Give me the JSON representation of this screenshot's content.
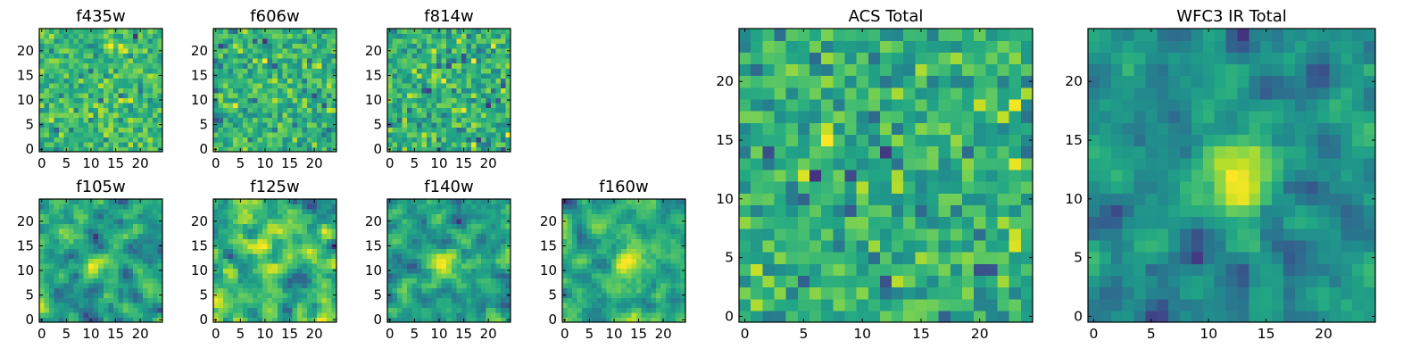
{
  "figure": {
    "description_colormap": "viridis",
    "colors": {
      "frame": "#000000",
      "background": "#ffffff"
    }
  },
  "chart_data": [
    {
      "id": "f435w",
      "type": "heatmap",
      "title": "f435w",
      "colormap": "viridis",
      "grid_size": 25,
      "xlim": [
        -0.5,
        24.5
      ],
      "ylim": [
        -0.5,
        24.5
      ],
      "xticks": [
        0,
        5,
        10,
        15,
        20
      ],
      "yticks": [
        0,
        5,
        10,
        15,
        20
      ],
      "texture": "noise",
      "seed": 11
    },
    {
      "id": "f606w",
      "type": "heatmap",
      "title": "f606w",
      "colormap": "viridis",
      "grid_size": 25,
      "xlim": [
        -0.5,
        24.5
      ],
      "ylim": [
        -0.5,
        24.5
      ],
      "xticks": [
        0,
        5,
        10,
        15,
        20
      ],
      "yticks": [
        0,
        5,
        10,
        15,
        20
      ],
      "texture": "noise",
      "seed": 23
    },
    {
      "id": "f814w",
      "type": "heatmap",
      "title": "f814w",
      "colormap": "viridis",
      "grid_size": 25,
      "xlim": [
        -0.5,
        24.5
      ],
      "ylim": [
        -0.5,
        24.5
      ],
      "xticks": [
        0,
        5,
        10,
        15,
        20
      ],
      "yticks": [
        0,
        5,
        10,
        15,
        20
      ],
      "texture": "noise",
      "seed": 37
    },
    {
      "id": "f105w",
      "type": "heatmap",
      "title": "f105w",
      "colormap": "viridis",
      "grid_size": 25,
      "xlim": [
        -0.5,
        24.5
      ],
      "ylim": [
        -0.5,
        24.5
      ],
      "xticks": [
        0,
        5,
        10,
        15,
        20
      ],
      "yticks": [
        0,
        5,
        10,
        15,
        20
      ],
      "texture": "smooth",
      "source_center": [
        11,
        11
      ],
      "source_strength": 0.15,
      "seed": 41
    },
    {
      "id": "f125w",
      "type": "heatmap",
      "title": "f125w",
      "colormap": "viridis",
      "grid_size": 25,
      "xlim": [
        -0.5,
        24.5
      ],
      "ylim": [
        -0.5,
        24.5
      ],
      "xticks": [
        0,
        5,
        10,
        15,
        20
      ],
      "yticks": [
        0,
        5,
        10,
        15,
        20
      ],
      "texture": "smooth",
      "source_center": [
        12,
        10
      ],
      "source_strength": 0.12,
      "seed": 53
    },
    {
      "id": "f140w",
      "type": "heatmap",
      "title": "f140w",
      "colormap": "viridis",
      "grid_size": 25,
      "xlim": [
        -0.5,
        24.5
      ],
      "ylim": [
        -0.5,
        24.5
      ],
      "xticks": [
        0,
        5,
        10,
        15,
        20
      ],
      "yticks": [
        0,
        5,
        10,
        15,
        20
      ],
      "texture": "smooth",
      "source_center": [
        11,
        11
      ],
      "source_strength": 0.3,
      "seed": 67
    },
    {
      "id": "f160w",
      "type": "heatmap",
      "title": "f160w",
      "colormap": "viridis",
      "grid_size": 25,
      "xlim": [
        -0.5,
        24.5
      ],
      "ylim": [
        -0.5,
        24.5
      ],
      "xticks": [
        0,
        5,
        10,
        15,
        20
      ],
      "yticks": [
        0,
        5,
        10,
        15,
        20
      ],
      "texture": "smooth",
      "source_center": [
        13,
        12
      ],
      "source_strength": 0.35,
      "seed": 79
    },
    {
      "id": "acs-total",
      "type": "heatmap",
      "title": "ACS Total",
      "colormap": "viridis",
      "grid_size": 25,
      "xlim": [
        -0.5,
        24.5
      ],
      "ylim": [
        -0.5,
        24.5
      ],
      "xticks": [
        0,
        5,
        10,
        15,
        20
      ],
      "yticks": [
        0,
        5,
        10,
        15,
        20
      ],
      "texture": "noise",
      "seed": 97
    },
    {
      "id": "wfc3-ir-total",
      "type": "heatmap",
      "title": "WFC3 IR Total",
      "colormap": "viridis",
      "grid_size": 25,
      "xlim": [
        -0.5,
        24.5
      ],
      "ylim": [
        -0.5,
        24.5
      ],
      "xticks": [
        0,
        5,
        10,
        15,
        20
      ],
      "yticks": [
        0,
        5,
        10,
        15,
        20
      ],
      "texture": "smooth",
      "source_center": [
        12,
        12
      ],
      "source_strength": 0.45,
      "seed": 113
    }
  ]
}
